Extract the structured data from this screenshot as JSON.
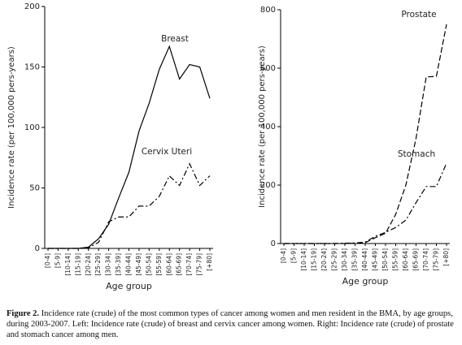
{
  "chart_data": [
    {
      "type": "line",
      "ylabel": "Incidence rate (per 100,000 pers-years)",
      "xlabel": "Age group",
      "categories": [
        "[0-4]",
        "[5-9]",
        "[10-14]",
        "[15-19]",
        "[20-24]",
        "[25-29]",
        "[30-34]",
        "[35-39]",
        "[40-44]",
        "[45-49]",
        "[50-54]",
        "[55-59]",
        "[60-64]",
        "[65-69]",
        "[70-74]",
        "[75-79]",
        "[+80]"
      ],
      "series": [
        {
          "name": "Breast",
          "color": "#000000",
          "dash": "solid",
          "values": [
            0,
            0,
            0,
            0,
            1,
            8,
            20,
            42,
            63,
            97,
            120,
            148,
            167,
            140,
            152,
            150,
            124
          ]
        },
        {
          "name": "Cervix Uteri",
          "color": "#000000",
          "dash": "dashdot",
          "values": [
            0,
            0,
            0,
            0,
            0.5,
            5,
            22,
            26,
            26,
            35,
            35,
            43,
            60,
            52,
            70,
            52,
            60
          ]
        }
      ],
      "ylim": [
        0,
        200
      ],
      "yticks": [
        0,
        50,
        100,
        150,
        200
      ],
      "grid": false
    },
    {
      "type": "line",
      "ylabel": "Incidence rate (per 100,000 pers-years)",
      "xlabel": "Age group",
      "categories": [
        "[0-4]",
        "[5-9]",
        "[10-14]",
        "[15-19]",
        "[20-24]",
        "[25-29]",
        "[30-34]",
        "[35-39]",
        "[40-44]",
        "[45-49]",
        "[50-54]",
        "[55-59]",
        "[60-64]",
        "[65-69]",
        "[70-74]",
        "[75-79]",
        "[+80]"
      ],
      "series": [
        {
          "name": "Prostate",
          "color": "#000000",
          "dash": "dash",
          "values": [
            0,
            0,
            0,
            0,
            0,
            0,
            0,
            1,
            3,
            20,
            35,
            100,
            200,
            360,
            570,
            572,
            750
          ]
        },
        {
          "name": "Stomach",
          "color": "#000000",
          "dash": "dashdot",
          "values": [
            0,
            0,
            0,
            0,
            0,
            0,
            1,
            2,
            5,
            25,
            38,
            55,
            80,
            140,
            195,
            195,
            275
          ]
        }
      ],
      "ylim": [
        0,
        800
      ],
      "yticks": [
        0,
        200,
        400,
        600,
        800
      ],
      "grid": false
    }
  ],
  "caption": {
    "label": "Figure 2.",
    "text": " Incidence rate (crude) of the most common types of cancer among women and men resident in the BMA, by age groups, during 2003-2007. Left: Incidence rate (crude) of breast and cervix cancer among women. Right: Incidence rate (crude) of prostate and stomach cancer among men."
  }
}
